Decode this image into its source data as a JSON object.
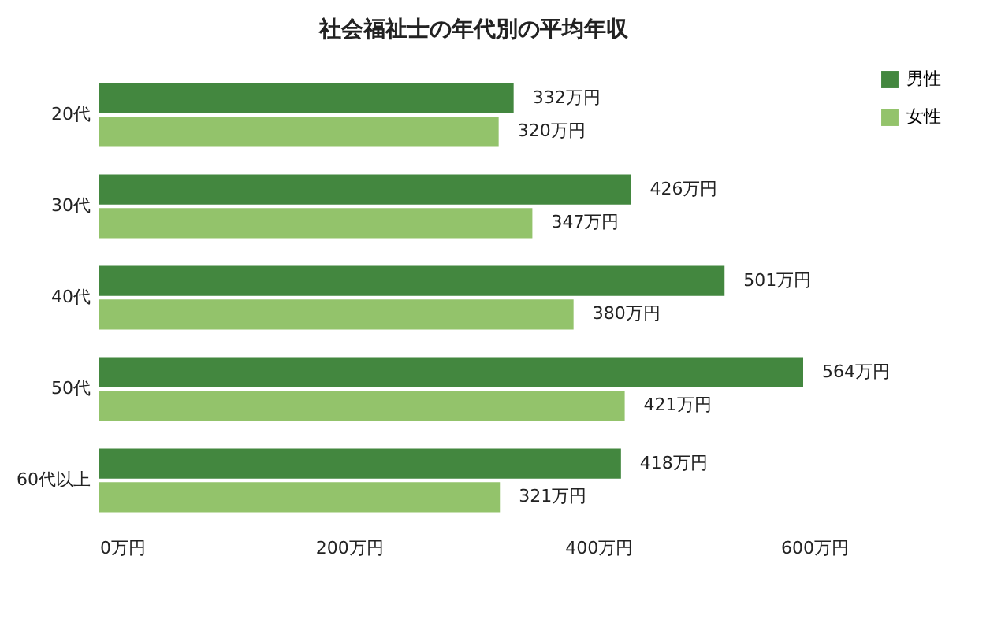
{
  "chart_data": {
    "type": "bar",
    "orientation": "horizontal",
    "title": "社会福祉士の年代別の平均年収",
    "categories": [
      "20代",
      "30代",
      "40代",
      "50代",
      "60代以上"
    ],
    "series": [
      {
        "name": "男性",
        "color": "#43873f",
        "values": [
          332,
          426,
          501,
          564,
          418
        ],
        "value_labels": [
          "332万円",
          "426万円",
          "501万円",
          "564万円",
          "418万円"
        ]
      },
      {
        "name": "女性",
        "color": "#93c36b",
        "values": [
          320,
          347,
          380,
          421,
          321
        ],
        "value_labels": [
          "320万円",
          "347万円",
          "380万円",
          "421万円",
          "321万円"
        ]
      }
    ],
    "xlim": [
      0,
      600
    ],
    "xticks": [
      {
        "value": 0,
        "label": "0万円"
      },
      {
        "value": 200,
        "label": "200万円"
      },
      {
        "value": 400,
        "label": "400万円"
      },
      {
        "value": 600,
        "label": "600万円"
      }
    ],
    "legend": "top right"
  }
}
